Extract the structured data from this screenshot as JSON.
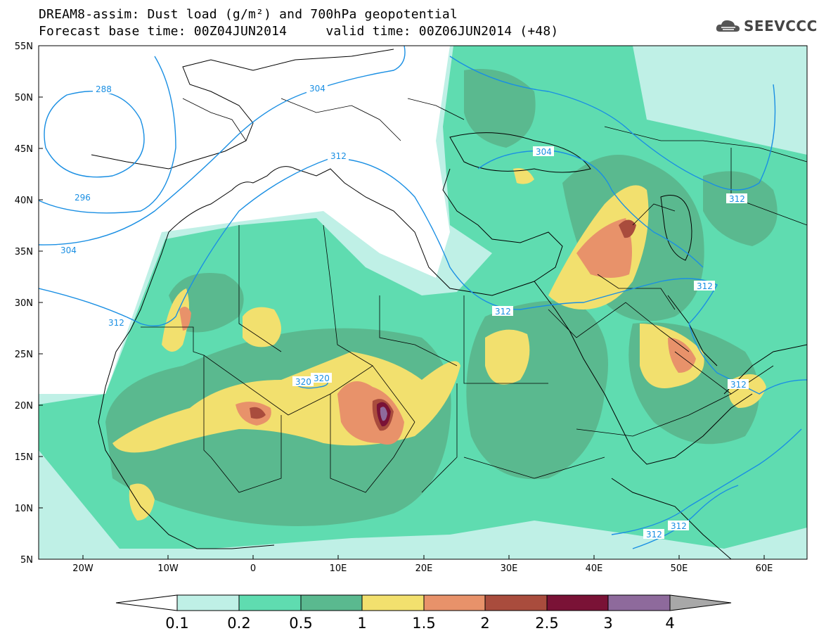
{
  "title": {
    "line1": "DREAM8-assim: Dust load (g/m²) and 700hPa geopotential",
    "line2": "Forecast base time: 00Z04JUN2014     valid time: 00Z06JUN2014 (+48)"
  },
  "logo": {
    "text": "SEEVCCC",
    "icon": "cloud-icon"
  },
  "axes": {
    "lon_ticks": [
      "20W",
      "10W",
      "0",
      "10E",
      "20E",
      "30E",
      "40E",
      "50E",
      "60E"
    ],
    "lat_ticks": [
      "55N",
      "50N",
      "45N",
      "40N",
      "35N",
      "30N",
      "25N",
      "20N",
      "15N",
      "10N",
      "5N"
    ]
  },
  "colorbar": {
    "labels": [
      "0.1",
      "0.2",
      "0.5",
      "1",
      "1.5",
      "2",
      "2.5",
      "3",
      "4"
    ],
    "colors": [
      "#bff0e6",
      "#5fdcb0",
      "#5ab98f",
      "#f2e06e",
      "#e8926a",
      "#a94c3d",
      "#7a1236",
      "#8e6a9c",
      "#a8a8a8"
    ]
  },
  "contours": {
    "color": "#1a8fe3",
    "labels": [
      "288",
      "296",
      "304",
      "304",
      "304",
      "312",
      "312",
      "312",
      "312",
      "312",
      "312",
      "312",
      "320",
      "320"
    ]
  },
  "colors": {
    "land_line": "#000000",
    "contour": "#1a8fe3"
  }
}
